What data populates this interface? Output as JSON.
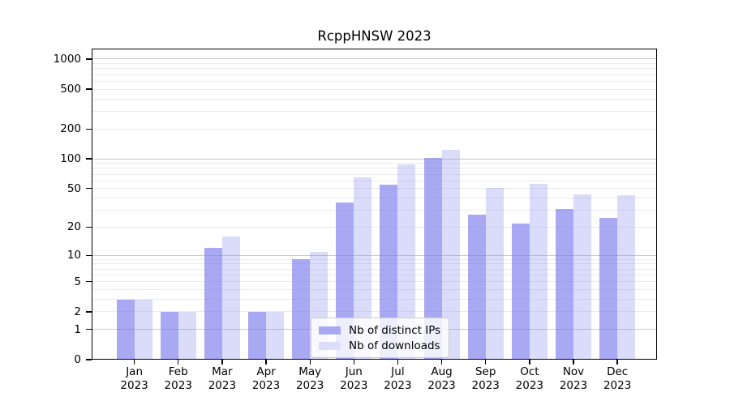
{
  "title": "RcppHNSW 2023",
  "chart_data": {
    "type": "bar",
    "title": "RcppHNSW 2023",
    "categories": [
      "Jan 2023",
      "Feb 2023",
      "Mar 2023",
      "Apr 2023",
      "May 2023",
      "Jun 2023",
      "Jul 2023",
      "Aug 2023",
      "Sep 2023",
      "Oct 2023",
      "Nov 2023",
      "Dec 2023"
    ],
    "series": [
      {
        "name": "Nb of distinct IPs",
        "values": [
          3,
          2,
          12,
          2,
          9,
          36,
          55,
          102,
          27,
          22,
          31,
          25
        ],
        "color": "#a8a9f2",
        "fill_rgba": "rgba(119,121,235,0.64)"
      },
      {
        "name": "Nb of downloads",
        "values": [
          3,
          2,
          16,
          2,
          11,
          65,
          88,
          124,
          51,
          56,
          44,
          43
        ],
        "color": "#dcddfa",
        "fill_rgba": "rgba(137,140,240,0.30)"
      }
    ],
    "yscale": "log1p",
    "y_ticks": [
      0,
      1,
      2,
      5,
      10,
      20,
      50,
      100,
      200,
      500,
      1000
    ],
    "y_minor_grid": [
      2,
      3,
      4,
      5,
      6,
      7,
      8,
      9,
      20,
      30,
      40,
      50,
      60,
      70,
      80,
      90,
      200,
      300,
      400,
      500,
      600,
      700,
      800,
      900
    ],
    "y_major_grid": [
      1,
      10,
      100,
      1000
    ],
    "ylim": [
      0,
      1273
    ],
    "xlabel": "",
    "ylabel": "",
    "grid": true,
    "legend_position": "lower center"
  },
  "colors": {
    "grid_minor": "#ebebeb",
    "grid_major": "#c9c9c9",
    "spine": "#000000",
    "text": "#000000",
    "legend_bg": "rgba(255,255,255,0.8)",
    "legend_border": "#cccccc"
  }
}
